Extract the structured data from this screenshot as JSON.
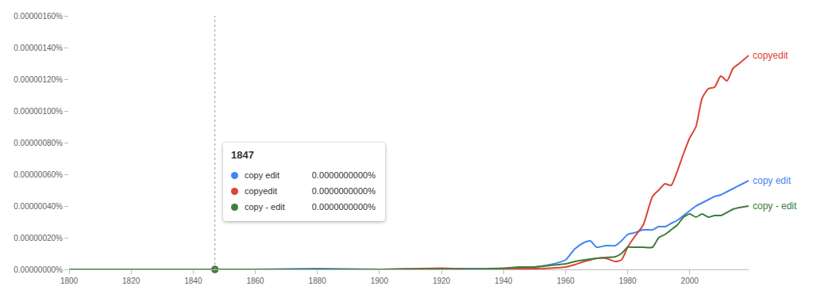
{
  "chart_data": {
    "type": "line",
    "x": [
      1800,
      1820,
      1840,
      1860,
      1880,
      1900,
      1920,
      1930,
      1940,
      1945,
      1950,
      1955,
      1960,
      1963,
      1966,
      1968,
      1970,
      1973,
      1976,
      1978,
      1980,
      1982,
      1985,
      1988,
      1990,
      1992,
      1994,
      1996,
      1998,
      2000,
      2002,
      2004,
      2006,
      2008,
      2010,
      2012,
      2014,
      2016,
      2019
    ],
    "series": [
      {
        "name": "copy edit",
        "color": "#4285f4",
        "values": [
          0,
          0,
          0,
          0,
          5e-09,
          0,
          3e-09,
          5e-09,
          0,
          8e-09,
          1.5e-08,
          3e-08,
          6e-08,
          1.3e-07,
          1.7e-07,
          1.8e-07,
          1.4e-07,
          1.5e-07,
          1.5e-07,
          1.8e-07,
          2.2e-07,
          2.3e-07,
          2.5e-07,
          2.5e-07,
          2.7e-07,
          2.7e-07,
          2.9e-07,
          3.1e-07,
          3.4e-07,
          3.7e-07,
          4e-07,
          4.2e-07,
          4.4e-07,
          4.6e-07,
          4.7e-07,
          4.9e-07,
          5.1e-07,
          5.3e-07,
          5.6e-07
        ]
      },
      {
        "name": "copyedit",
        "color": "#db4437",
        "values": [
          0,
          0,
          0,
          0,
          0,
          0,
          8e-09,
          0,
          0,
          5e-09,
          5e-09,
          8e-09,
          1.5e-08,
          3e-08,
          5e-08,
          6e-08,
          7e-08,
          7e-08,
          5e-08,
          6e-08,
          1.4e-07,
          2e-07,
          2.8e-07,
          4.6e-07,
          5e-07,
          5.4e-07,
          5.3e-07,
          6.2e-07,
          7.3e-07,
          8.3e-07,
          9e-07,
          1.08e-06,
          1.14e-06,
          1.15e-06,
          1.22e-06,
          1.19e-06,
          1.27e-06,
          1.3e-06,
          1.35e-06
        ]
      },
      {
        "name": "copy - edit",
        "color": "#3e7d3a",
        "values": [
          0,
          0,
          0,
          0,
          0,
          0,
          3e-09,
          3e-09,
          8e-09,
          1.5e-08,
          1.5e-08,
          2.5e-08,
          3.5e-08,
          5e-08,
          6e-08,
          6.5e-08,
          7e-08,
          7.5e-08,
          8e-08,
          1e-07,
          1.4e-07,
          1.4e-07,
          1.4e-07,
          1.4e-07,
          2e-07,
          2.2e-07,
          2.5e-07,
          2.8e-07,
          3.3e-07,
          3.5e-07,
          3.3e-07,
          3.5e-07,
          3.3e-07,
          3.4e-07,
          3.4e-07,
          3.6e-07,
          3.8e-07,
          3.9e-07,
          4e-07
        ]
      }
    ],
    "xlim": [
      1800,
      2019
    ],
    "xticks": [
      1800,
      1820,
      1840,
      1860,
      1880,
      1900,
      1920,
      1940,
      1960,
      1980,
      2000
    ],
    "ylim": [
      0,
      1.6e-06
    ],
    "yticks": [
      {
        "value": 0,
        "label": "0.00000000%"
      },
      {
        "value": 2e-07,
        "label": "0.00000020%"
      },
      {
        "value": 4e-07,
        "label": "0.00000040%"
      },
      {
        "value": 6e-07,
        "label": "0.00000060%"
      },
      {
        "value": 8e-07,
        "label": "0.00000080%"
      },
      {
        "value": 1e-06,
        "label": "0.00000100%"
      },
      {
        "value": 1.2e-06,
        "label": "0.00000120%"
      },
      {
        "value": 1.4e-06,
        "label": "0.00000140%"
      },
      {
        "value": 1.6e-06,
        "label": "0.00000160%"
      }
    ],
    "grid": false,
    "annotations": [
      {
        "x": 1847,
        "items": [
          {
            "series": "copy edit",
            "value": 0,
            "value_label": "0.0000000000%"
          },
          {
            "series": "copyedit",
            "value": 0,
            "value_label": "0.0000000000%"
          },
          {
            "series": "copy - edit",
            "value": 0,
            "value_label": "0.0000000000%"
          }
        ]
      }
    ]
  }
}
